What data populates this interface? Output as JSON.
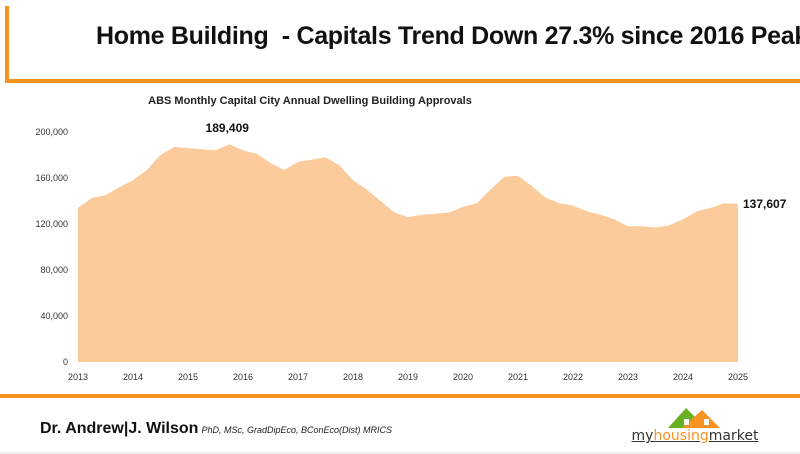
{
  "header": {
    "title": "Home Building  - Capitals Trend Down 27.3% since 2016 Peak"
  },
  "chart_data": {
    "type": "area",
    "title": "ABS Monthly Capital City Annual Dwelling Building Approvals",
    "xlabel": "",
    "ylabel": "",
    "x": [
      2013.0,
      2013.25,
      2013.5,
      2013.75,
      2014.0,
      2014.25,
      2014.5,
      2014.75,
      2015.0,
      2015.25,
      2015.5,
      2015.75,
      2016.0,
      2016.25,
      2016.5,
      2016.75,
      2017.0,
      2017.25,
      2017.5,
      2017.75,
      2018.0,
      2018.25,
      2018.5,
      2018.75,
      2019.0,
      2019.25,
      2019.5,
      2019.75,
      2020.0,
      2020.25,
      2020.5,
      2020.75,
      2021.0,
      2021.25,
      2021.5,
      2021.75,
      2022.0,
      2022.25,
      2022.5,
      2022.75,
      2023.0,
      2023.25,
      2023.5,
      2023.75,
      2024.0,
      2024.25,
      2024.5,
      2024.75,
      2025.0
    ],
    "values": [
      134000,
      142600,
      145000,
      152000,
      158000,
      167000,
      180000,
      187000,
      186000,
      185000,
      184000,
      189409,
      184000,
      181000,
      173000,
      167000,
      174000,
      176000,
      178000,
      171000,
      158000,
      150000,
      140000,
      130000,
      126000,
      128000,
      129000,
      130000,
      135000,
      138000,
      150000,
      161000,
      162000,
      153000,
      143000,
      138000,
      136000,
      131000,
      128000,
      124000,
      118000,
      118000,
      117000,
      119000,
      124000,
      131000,
      134000,
      138000,
      137607
    ],
    "xticks": [
      "2013",
      "2014",
      "2015",
      "2016",
      "2017",
      "2018",
      "2019",
      "2020",
      "2021",
      "2022",
      "2023",
      "2024",
      "2025"
    ],
    "yticks": [
      "0",
      "40,000",
      "80,000",
      "120,000",
      "160,000",
      "200,000"
    ],
    "ylim": [
      0,
      200000
    ],
    "xlim": [
      2013,
      2025
    ],
    "grid": false,
    "color": "#fccb9c",
    "annotations": [
      {
        "text": "189,409",
        "x": 2015.75,
        "y": 189409
      },
      {
        "text": "137,607",
        "x": 2025.0,
        "y": 137607
      }
    ]
  },
  "footer": {
    "author": "Dr. Andrew|J. Wilson",
    "credentials": "PhD, MSc, GradDipEco, BConEco(Dist) MRICS",
    "logo_text": {
      "my": "my",
      "housing": "housing",
      "market": "market"
    }
  },
  "colors": {
    "accent": "#f7931e",
    "area": "#fccb9c",
    "logo_green": "#6ab023"
  }
}
